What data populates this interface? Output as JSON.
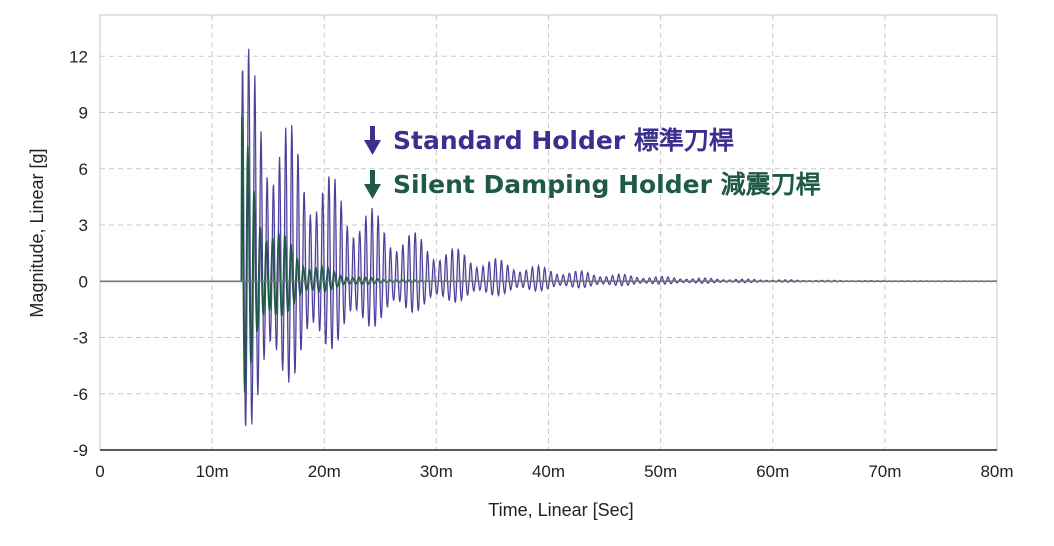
{
  "chart_data": {
    "type": "line",
    "xlabel": "Time, Linear [Sec]",
    "ylabel": "Magnitude, Linear [g]",
    "xlim": [
      0,
      80
    ],
    "ylim": [
      -9,
      14.2
    ],
    "x_unit": "ms",
    "x_ticks": [
      0,
      10,
      20,
      30,
      40,
      50,
      60,
      70,
      80
    ],
    "x_tick_labels": [
      "0",
      "10m",
      "20m",
      "30m",
      "40m",
      "50m",
      "60m",
      "70m",
      "80m"
    ],
    "y_ticks": [
      12,
      9,
      6,
      3,
      0,
      -3,
      -6,
      -9
    ],
    "y_tick_labels": [
      "12",
      "9",
      "6",
      "3",
      "0",
      "-3",
      "-6",
      "-9"
    ],
    "grid": true,
    "legend_position": "center-top",
    "series": [
      {
        "name": "Standard Holder 標準刀桿",
        "color": "#3b2f8f",
        "fill_color": "#b9aad6",
        "impact_time": 12.6,
        "peak": 13.5,
        "trough": -8.6,
        "oscillation_period": 0.55,
        "decay_time_constant": 9.5,
        "envelope": [
          {
            "x": 12.6,
            "y": 13.5
          },
          {
            "x": 15,
            "y": 6.0
          },
          {
            "x": 20,
            "y": 2.4
          },
          {
            "x": 25,
            "y": 1.5
          },
          {
            "x": 30,
            "y": 0.8
          },
          {
            "x": 35,
            "y": 0.5
          },
          {
            "x": 40,
            "y": 0.2
          },
          {
            "x": 45,
            "y": 0.1
          },
          {
            "x": 50,
            "y": 0.0
          }
        ]
      },
      {
        "name": "Silent Damping Holder 減震刀桿",
        "color": "#1e5a46",
        "impact_time": 12.6,
        "peak": 9.1,
        "trough": -6.6,
        "oscillation_period": 0.55,
        "decay_time_constant": 3.0,
        "envelope": [
          {
            "x": 12.6,
            "y": 9.1
          },
          {
            "x": 14,
            "y": 3.5
          },
          {
            "x": 16,
            "y": 1.6
          },
          {
            "x": 20,
            "y": 0.5
          },
          {
            "x": 25,
            "y": 0.2
          },
          {
            "x": 30,
            "y": 0.0
          }
        ]
      }
    ]
  },
  "icons": {
    "standard_arrow": "down-arrow-icon",
    "damping_arrow": "down-arrow-icon"
  }
}
